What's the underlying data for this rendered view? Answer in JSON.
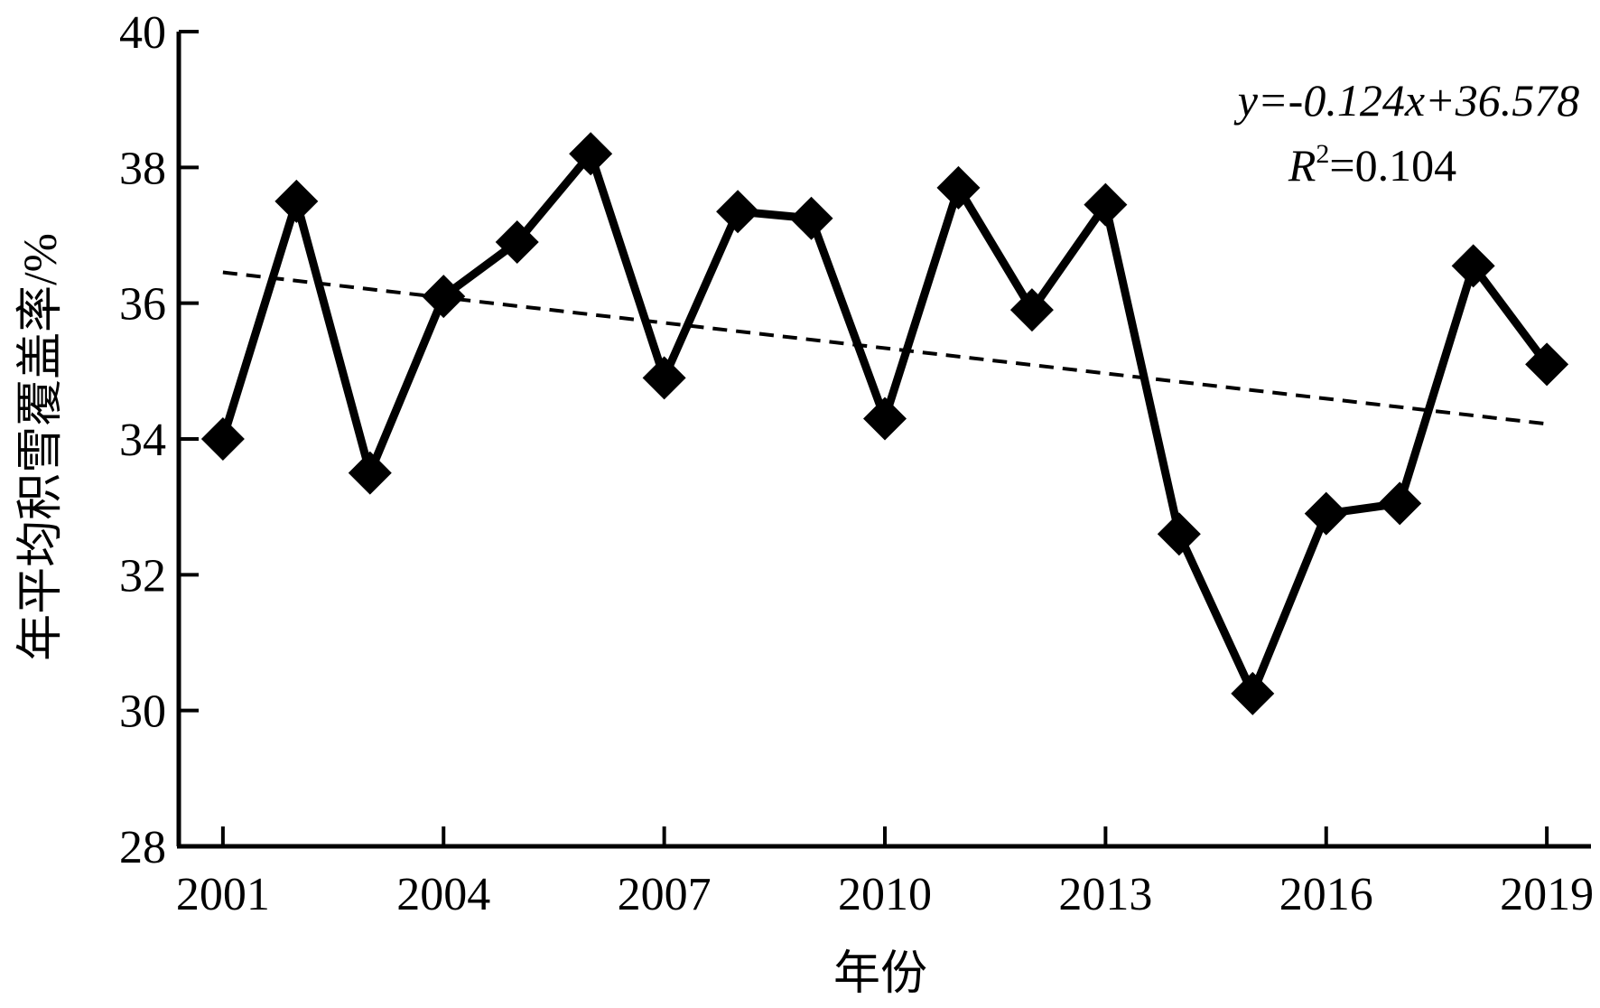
{
  "chart_data": {
    "type": "line",
    "x": [
      2001,
      2002,
      2003,
      2004,
      2005,
      2006,
      2007,
      2008,
      2009,
      2010,
      2011,
      2012,
      2013,
      2014,
      2015,
      2016,
      2017,
      2018,
      2019
    ],
    "series": [
      {
        "values": [
          34.0,
          37.5,
          33.5,
          36.1,
          36.9,
          38.2,
          34.9,
          37.35,
          37.25,
          34.3,
          37.7,
          35.9,
          37.45,
          32.6,
          30.25,
          32.9,
          33.05,
          36.55,
          35.1
        ],
        "color": "#000000",
        "marker": "diamond"
      }
    ],
    "trendline": {
      "slope": -0.124,
      "intercept": 36.578,
      "equation_text": "y=-0.124x+36.578",
      "r2_label": "R",
      "r2_sup": "2",
      "r2_value": "=0.104",
      "style": "dashed"
    },
    "xlabel": "年份",
    "ylabel": "年平均积雪覆盖率/%",
    "xticks": [
      2001,
      2004,
      2007,
      2010,
      2013,
      2016,
      2019
    ],
    "xlim": [
      2000.4,
      2019.6
    ],
    "yticks": [
      28,
      30,
      32,
      34,
      36,
      38,
      40
    ],
    "ylim": [
      28,
      40
    ],
    "grid": false,
    "legend": "none"
  }
}
